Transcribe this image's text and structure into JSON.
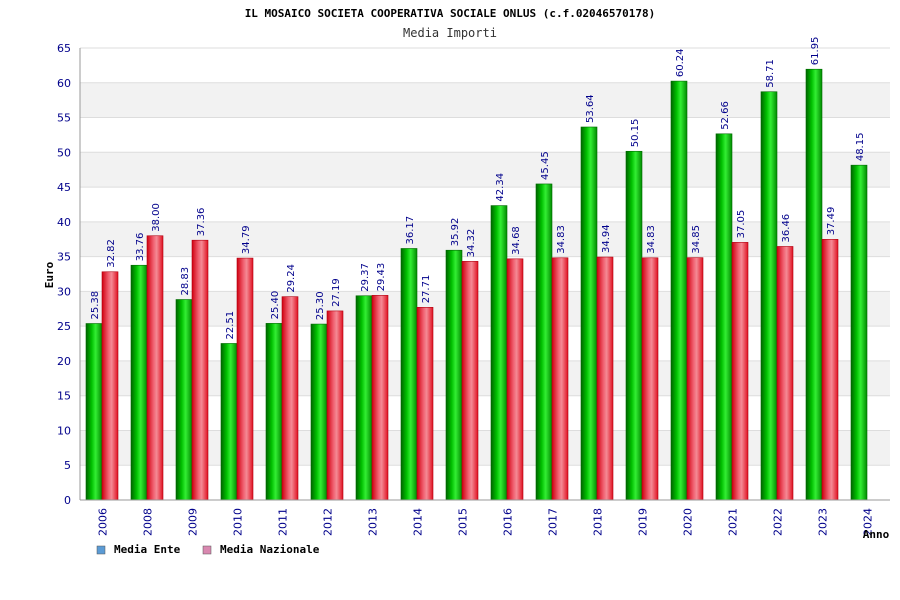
{
  "chart_data": {
    "type": "bar",
    "title": "IL MOSAICO SOCIETA COOPERATIVA SOCIALE ONLUS (c.f.02046570178)",
    "subtitle": "Media Importi",
    "xlabel": "Anno",
    "ylabel": "Euro",
    "ylim": [
      0,
      65
    ],
    "ytick_step": 5,
    "grid": true,
    "legend_position": "bottom-left",
    "categories": [
      "2006",
      "2008",
      "2009",
      "2010",
      "2011",
      "2012",
      "2013",
      "2014",
      "2015",
      "2016",
      "2017",
      "2018",
      "2019",
      "2020",
      "2021",
      "2022",
      "2023",
      "2024"
    ],
    "series": [
      {
        "name": "Media Ente",
        "color": "#00b000",
        "legend_color": "#5b9bd5",
        "values": [
          25.38,
          33.76,
          28.83,
          22.51,
          25.4,
          25.3,
          29.37,
          36.17,
          35.92,
          42.34,
          45.45,
          53.64,
          50.15,
          60.24,
          52.66,
          58.71,
          61.95,
          48.15
        ],
        "labels": [
          "25.38",
          "33.76",
          "28.83",
          "22.51",
          "25.40",
          "25.30",
          "29.37",
          "36.17",
          "35.92",
          "42.34",
          "45.45",
          "53.64",
          "50.15",
          "60.24",
          "52.66",
          "58.71",
          "61.95",
          "48.15"
        ]
      },
      {
        "name": "Media Nazionale",
        "color": "#e8101a",
        "legend_color": "#d988b0",
        "values": [
          32.82,
          38.0,
          37.36,
          34.79,
          29.24,
          27.19,
          29.43,
          27.71,
          34.32,
          34.68,
          34.83,
          34.94,
          34.83,
          34.85,
          37.05,
          36.46,
          37.49,
          null
        ],
        "labels": [
          "32.82",
          "38.00",
          "37.36",
          "34.79",
          "29.24",
          "27.19",
          "29.43",
          "27.71",
          "34.32",
          "34.68",
          "34.83",
          "34.94",
          "34.83",
          "34.85",
          "37.05",
          "36.46",
          "37.49",
          null
        ]
      }
    ]
  }
}
